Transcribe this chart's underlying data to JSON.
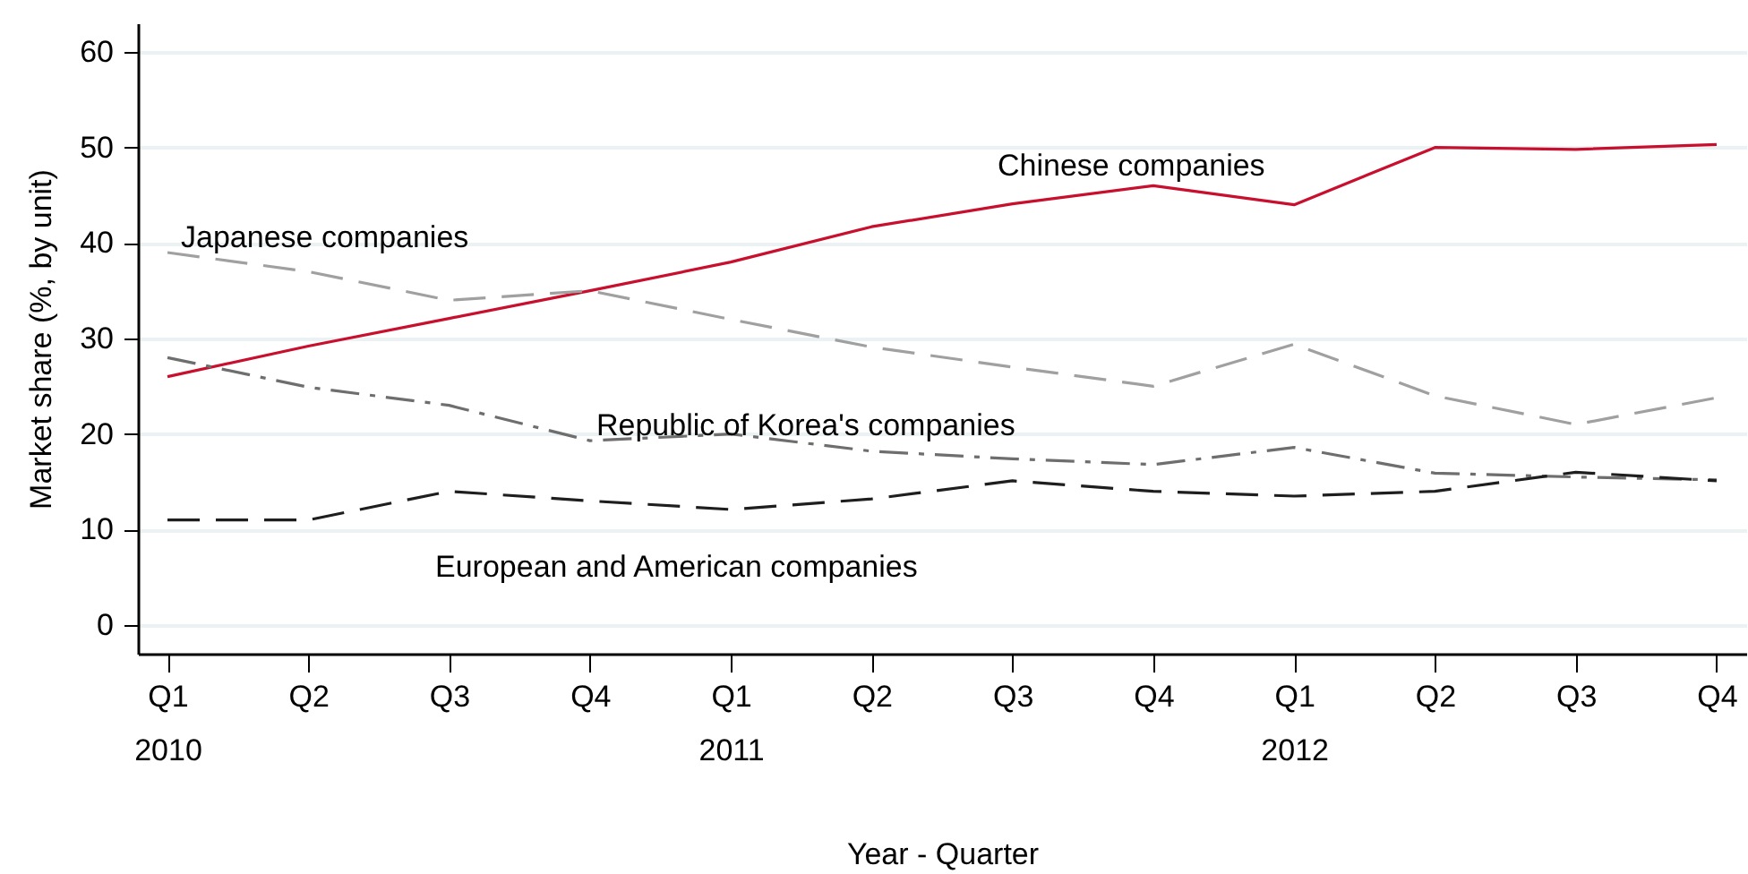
{
  "chart_data": {
    "type": "line",
    "xlabel": "Year - Quarter",
    "ylabel": "Market share (%, by unit)",
    "categories": [
      "Q1\n2010",
      "Q2",
      "Q3",
      "Q4",
      "Q1\n2011",
      "Q2",
      "Q3",
      "Q4",
      "Q1\n2012",
      "Q2",
      "Q3",
      "Q4"
    ],
    "series": [
      {
        "name": "Chinese companies",
        "color": "#c8102e",
        "line_style": "solid",
        "values": [
          26.0,
          29.2,
          32.1,
          35.0,
          38.0,
          41.7,
          44.1,
          46.0,
          44.0,
          50.0,
          49.8,
          50.3
        ]
      },
      {
        "name": "Japanese companies",
        "color": "#a0a0a0",
        "line_style": "dashed",
        "values": [
          39.0,
          37.0,
          34.0,
          35.0,
          32.0,
          29.1,
          27.0,
          25.0,
          29.4,
          24.0,
          21.0,
          23.8
        ]
      },
      {
        "name": "Republic of Korea's companies",
        "color": "#6e6e6e",
        "line_style": "dashdot",
        "values": [
          28.0,
          24.9,
          23.0,
          19.3,
          20.0,
          18.2,
          17.4,
          16.8,
          18.6,
          15.9,
          15.5,
          15.2
        ]
      },
      {
        "name": "European and American companies",
        "color": "#1e1e1e",
        "line_style": "dashed",
        "values": [
          11.0,
          11.0,
          14.0,
          13.0,
          12.1,
          13.2,
          15.1,
          14.0,
          13.5,
          14.0,
          16.0,
          15.1
        ]
      }
    ],
    "ylim": [
      -3,
      63
    ],
    "yticks": [
      0,
      10,
      20,
      30,
      40,
      50,
      60
    ],
    "grid": "y",
    "marker": "none"
  }
}
